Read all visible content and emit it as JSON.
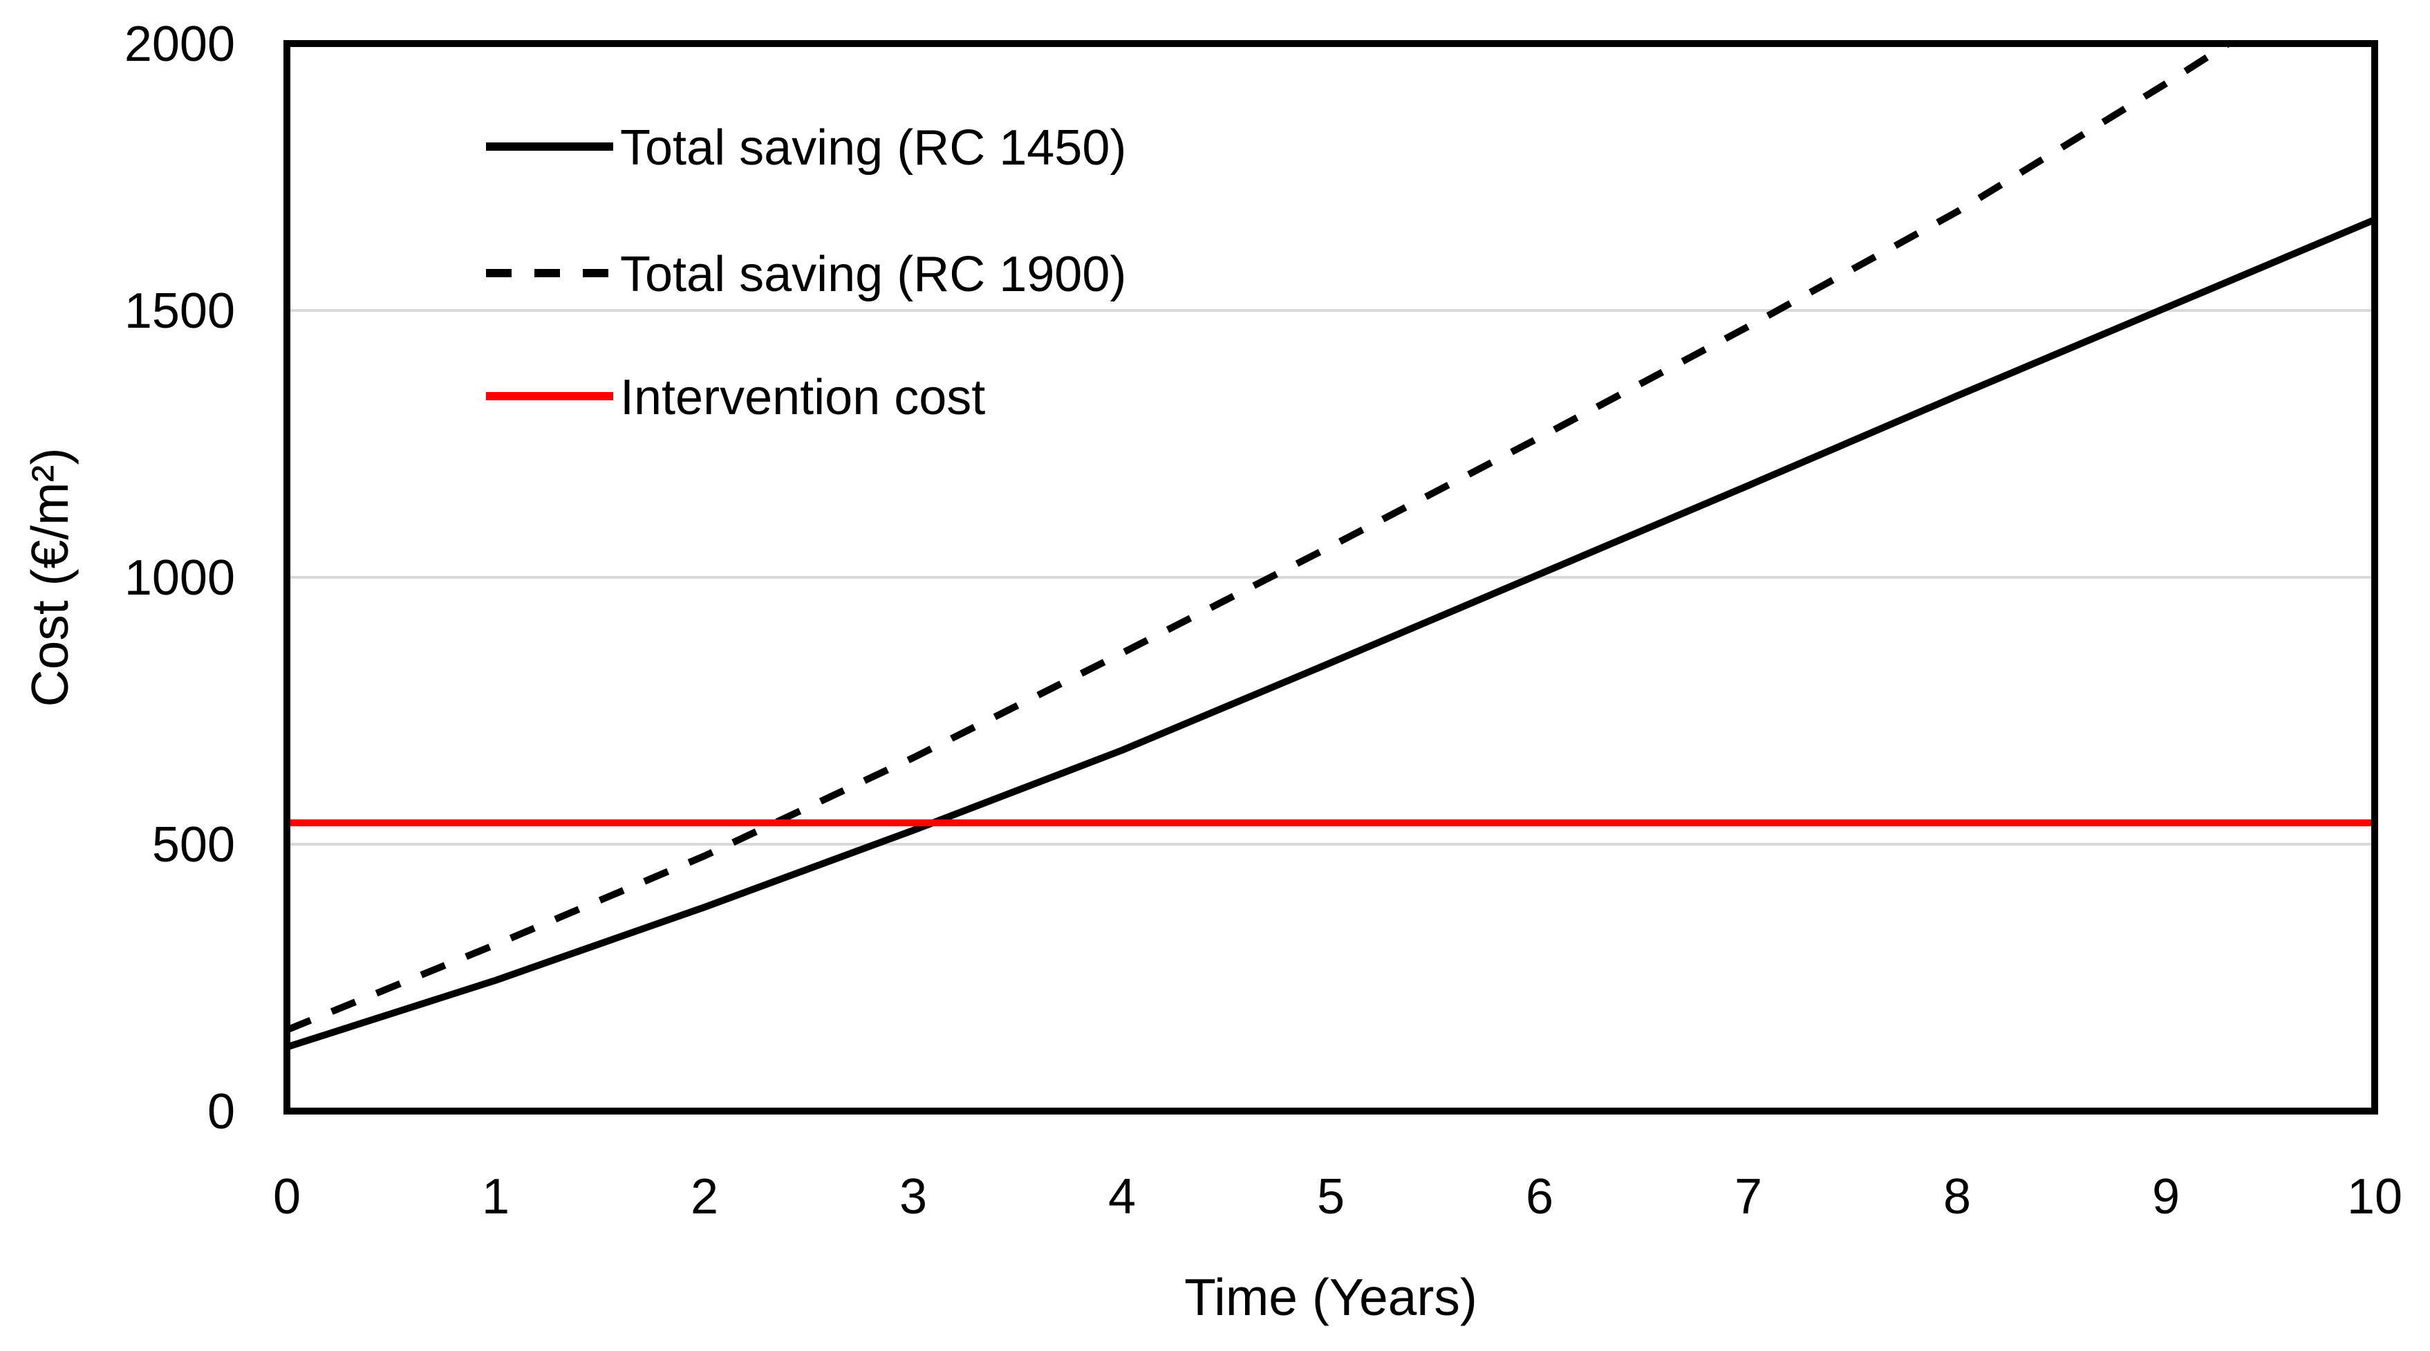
{
  "chart_data": {
    "type": "line",
    "title": "",
    "xlabel": "Time (Years)",
    "ylabel": "Cost (€/m²)",
    "xlim": [
      0,
      10
    ],
    "ylim": [
      0,
      2000
    ],
    "x_ticks": [
      0,
      1,
      2,
      3,
      4,
      5,
      6,
      7,
      8,
      9,
      10
    ],
    "y_ticks": [
      0,
      500,
      1000,
      1500,
      2000
    ],
    "y_gridlines": [
      500,
      1000,
      1500
    ],
    "grid_on": true,
    "legend_position": "upper-left-inside",
    "x": [
      0,
      1,
      2,
      3,
      4,
      5,
      6,
      7,
      8,
      9,
      10
    ],
    "series": [
      {
        "name": "Total saving (RC 1450)",
        "line_style": "solid",
        "color": "#000000",
        "values": [
          120,
          245,
          382,
          526,
          676,
          840,
          1006,
          1172,
          1340,
          1505,
          1670
        ]
      },
      {
        "name": "Total saving (RC 1900)",
        "line_style": "dashed",
        "color": "#000000",
        "values": [
          152,
          312,
          478,
          662,
          858,
          1058,
          1262,
          1470,
          1685,
          1925,
          2175
        ]
      },
      {
        "name": "Intervention cost",
        "line_style": "solid",
        "color": "#FF0000",
        "values": [
          540,
          540,
          540,
          540,
          540,
          540,
          540,
          540,
          540,
          540,
          540
        ]
      }
    ]
  },
  "colors": {
    "axis_frame": "#000000",
    "grid": "#D9D9D9",
    "text": "#000000",
    "intervention": "#FF0000",
    "background": "#FFFFFF"
  }
}
